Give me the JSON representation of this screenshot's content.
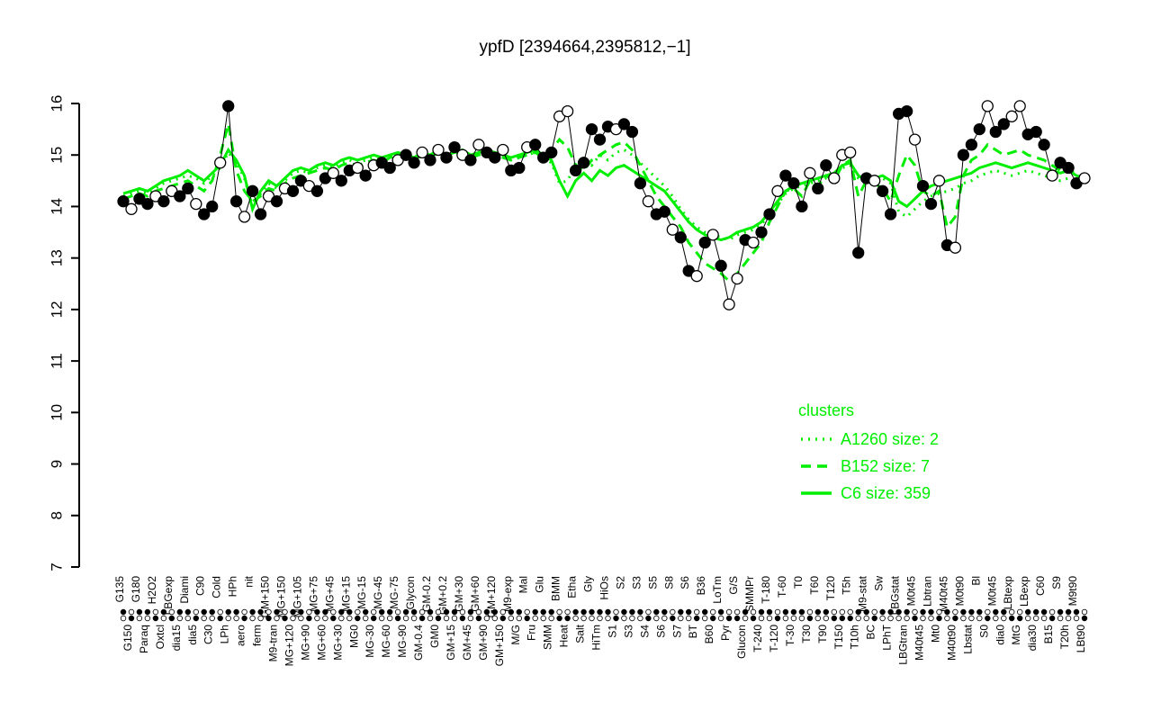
{
  "title": "ypfD [2394664,2395812,−1]",
  "colors": {
    "cluster_green": "#00ee00",
    "point_black": "#000000",
    "background": "#ffffff"
  },
  "legend": {
    "title": "clusters",
    "items": [
      {
        "label": "A1260 size: 2",
        "style": "dotted"
      },
      {
        "label": "B152 size: 7",
        "style": "dashed"
      },
      {
        "label": "C6 size: 359",
        "style": "solid"
      }
    ]
  },
  "chart_data": {
    "type": "line",
    "title": "ypfD [2394664,2395812,−1]",
    "ylim": [
      7,
      16
    ],
    "yticks": [
      7,
      8,
      9,
      10,
      11,
      12,
      13,
      14,
      15,
      16
    ],
    "grid": false,
    "legend_position": "right-middle",
    "categories": [
      "G135",
      "G150",
      "G180",
      "Paraq",
      "H2O2",
      "Oxtcl",
      "LBGexp",
      "dia15",
      "Diami",
      "dia5",
      "C90",
      "C30",
      "Cold",
      "LPh",
      "HPh",
      "aero",
      "nit",
      "ferm",
      "GM+150",
      "M9-tran",
      "MG+150",
      "MG+120",
      "MG+105",
      "MG+90",
      "MG+75",
      "MG+60",
      "MG+45",
      "MG+30",
      "MG+15",
      "MG0",
      "MG-15",
      "MG-30",
      "MG-45",
      "MG-60",
      "MG-75",
      "MG-90",
      "Glycon",
      "GM-0.4",
      "GM-0.2",
      "GM0",
      "GM+0.2",
      "GM+15",
      "GM+30",
      "GM+45",
      "GM+60",
      "GM+90",
      "GM+120",
      "GM+150",
      "M9-exp",
      "M/G",
      "Mal",
      "Fru",
      "Glu",
      "SMM",
      "BMM",
      "Heat",
      "Etha",
      "Salt",
      "Gly",
      "HiTm",
      "HiOs",
      "S1",
      "S2",
      "S3",
      "S3",
      "S4",
      "S5",
      "S6",
      "S8",
      "S7",
      "S6",
      "BT",
      "B36",
      "B60",
      "LoTm",
      "Pyr",
      "G/S",
      "Glucon",
      "SMMPr",
      "T-240",
      "T-180",
      "T-120",
      "T-60",
      "T-30",
      "T0",
      "T30",
      "T60",
      "T90",
      "T120",
      "T150",
      "T5h",
      "T10h",
      "M9-stat",
      "BC",
      "Sw",
      "LPhT",
      "LBGstat",
      "LBGtran",
      "M0t45",
      "M40t45",
      "Lbtran",
      "Mt0",
      "M40t45",
      "M40t90",
      "M0t90",
      "Lbstat",
      "Bl",
      "S0",
      "M0t45",
      "dia0",
      "LBtexp",
      "MtG",
      "LBexp",
      "dia30",
      "C60",
      "B15",
      "S9",
      "T20h",
      "M9t90",
      "LBt90"
    ],
    "gene_points": {
      "values": [
        14.1,
        13.95,
        14.15,
        14.05,
        14.2,
        14.1,
        14.3,
        14.2,
        14.35,
        14.05,
        13.85,
        14.0,
        14.85,
        15.95,
        14.1,
        13.8,
        14.3,
        13.85,
        14.2,
        14.1,
        14.35,
        14.3,
        14.5,
        14.4,
        14.3,
        14.55,
        14.65,
        14.5,
        14.7,
        14.75,
        14.6,
        14.8,
        14.85,
        14.75,
        14.9,
        15.0,
        14.85,
        15.05,
        14.9,
        15.1,
        14.95,
        15.15,
        15.0,
        14.9,
        15.2,
        15.05,
        14.95,
        15.1,
        14.7,
        14.75,
        15.15,
        15.2,
        14.95,
        15.05,
        15.75,
        15.85,
        14.7,
        14.85,
        15.5,
        15.3,
        15.55,
        15.5,
        15.6,
        15.45,
        14.45,
        14.1,
        13.85,
        13.9,
        13.55,
        13.4,
        12.75,
        12.65,
        13.3,
        13.45,
        12.85,
        12.1,
        12.6,
        13.35,
        13.3,
        13.5,
        13.85,
        14.3,
        14.6,
        14.45,
        14.0,
        14.65,
        14.35,
        14.8,
        14.55,
        15.0,
        15.05,
        13.1,
        14.55,
        14.5,
        14.3,
        13.85,
        15.8,
        15.85,
        15.3,
        14.4,
        14.05,
        14.5,
        13.25,
        13.2,
        15.0,
        15.2,
        15.5,
        15.95,
        15.45,
        15.6,
        15.75,
        15.95,
        15.4,
        15.45,
        15.2,
        14.6,
        14.85,
        14.75,
        14.45,
        14.55
      ],
      "filled": [
        1,
        0,
        1,
        1,
        0,
        1,
        0,
        1,
        1,
        0,
        1,
        1,
        0,
        1,
        1,
        0,
        1,
        1,
        0,
        1,
        0,
        1,
        1,
        0,
        1,
        1,
        0,
        1,
        1,
        0,
        1,
        0,
        1,
        1,
        0,
        1,
        1,
        0,
        1,
        0,
        1,
        1,
        0,
        1,
        0,
        1,
        1,
        0,
        1,
        1,
        0,
        1,
        1,
        1,
        0,
        0,
        1,
        1,
        1,
        1,
        1,
        0,
        1,
        1,
        1,
        0,
        1,
        1,
        0,
        1,
        1,
        0,
        1,
        0,
        1,
        0,
        0,
        1,
        0,
        1,
        1,
        0,
        1,
        1,
        1,
        0,
        1,
        1,
        0,
        0,
        0,
        1,
        1,
        0,
        1,
        1,
        1,
        1,
        0,
        1,
        1,
        0,
        1,
        0,
        1,
        1,
        1,
        0,
        1,
        1,
        0,
        0,
        1,
        1,
        1,
        0,
        1,
        1,
        1,
        0
      ]
    },
    "series": [
      {
        "name": "A1260 size: 2",
        "style": "dotted",
        "values": [
          14.2,
          14.25,
          14.3,
          14.25,
          14.35,
          14.45,
          14.5,
          14.55,
          14.6,
          14.55,
          14.45,
          14.6,
          14.75,
          15.05,
          14.85,
          14.55,
          14.0,
          14.25,
          14.45,
          14.35,
          14.5,
          14.65,
          14.7,
          14.65,
          14.75,
          14.8,
          14.75,
          14.85,
          14.9,
          14.85,
          14.9,
          14.95,
          14.9,
          14.95,
          15.0,
          14.95,
          14.9,
          15.0,
          14.95,
          15.05,
          14.95,
          15.0,
          15.05,
          14.95,
          15.0,
          15.05,
          15.0,
          14.95,
          14.9,
          14.95,
          15.0,
          15.05,
          14.95,
          14.85,
          14.45,
          14.5,
          14.8,
          14.95,
          14.8,
          15.0,
          14.9,
          15.05,
          15.1,
          15.0,
          14.85,
          14.7,
          14.55,
          14.4,
          14.2,
          13.95,
          13.75,
          13.6,
          13.5,
          13.45,
          13.4,
          13.35,
          13.45,
          13.5,
          13.55,
          13.65,
          13.85,
          14.05,
          14.25,
          14.35,
          14.4,
          14.45,
          14.5,
          14.55,
          14.6,
          14.75,
          14.8,
          14.55,
          14.45,
          14.5,
          14.55,
          14.45,
          13.9,
          13.8,
          13.95,
          14.1,
          14.2,
          14.25,
          14.3,
          14.35,
          14.45,
          14.5,
          14.6,
          14.65,
          14.7,
          14.65,
          14.6,
          14.65,
          14.7,
          14.65,
          14.6,
          14.55,
          14.5,
          14.55,
          14.45,
          14.4
        ]
      },
      {
        "name": "B152 size: 7",
        "style": "dashed",
        "values": [
          14.15,
          14.2,
          14.25,
          14.2,
          14.3,
          14.35,
          14.4,
          14.45,
          14.5,
          14.4,
          14.3,
          14.5,
          15.0,
          15.6,
          14.7,
          14.3,
          14.1,
          14.2,
          14.35,
          14.3,
          14.45,
          14.55,
          14.6,
          14.65,
          14.7,
          14.75,
          14.7,
          14.8,
          14.85,
          14.8,
          14.85,
          14.9,
          14.85,
          14.95,
          15.0,
          14.95,
          14.9,
          15.0,
          14.95,
          15.05,
          14.95,
          15.0,
          15.05,
          14.95,
          15.0,
          15.05,
          15.0,
          14.95,
          14.9,
          14.95,
          15.0,
          15.05,
          14.95,
          15.1,
          15.3,
          15.15,
          14.8,
          14.7,
          14.9,
          15.0,
          15.1,
          15.2,
          15.25,
          15.1,
          14.8,
          14.5,
          14.2,
          14.0,
          13.8,
          13.6,
          13.3,
          13.1,
          12.9,
          12.8,
          12.7,
          12.55,
          12.7,
          12.9,
          13.1,
          13.3,
          13.7,
          14.0,
          14.3,
          14.35,
          14.2,
          14.5,
          14.4,
          14.6,
          14.5,
          14.8,
          14.9,
          14.2,
          14.5,
          14.45,
          14.35,
          14.1,
          14.6,
          15.0,
          14.8,
          14.3,
          14.2,
          14.3,
          13.6,
          13.8,
          14.6,
          14.9,
          15.0,
          15.2,
          15.1,
          15.0,
          15.05,
          15.1,
          15.0,
          14.95,
          14.9,
          14.8,
          14.7,
          14.75,
          14.6,
          14.5
        ]
      },
      {
        "name": "C6 size: 359",
        "style": "solid",
        "values": [
          14.25,
          14.3,
          14.35,
          14.3,
          14.4,
          14.5,
          14.55,
          14.6,
          14.7,
          14.6,
          14.5,
          14.65,
          14.8,
          15.1,
          14.9,
          14.6,
          13.95,
          14.3,
          14.5,
          14.4,
          14.55,
          14.7,
          14.75,
          14.7,
          14.8,
          14.85,
          14.8,
          14.9,
          14.95,
          14.9,
          14.95,
          15.0,
          14.95,
          15.0,
          15.05,
          15.0,
          14.95,
          15.05,
          15.0,
          15.1,
          15.0,
          15.05,
          15.1,
          15.0,
          15.05,
          15.1,
          15.05,
          15.0,
          14.95,
          15.0,
          15.05,
          15.1,
          15.0,
          14.9,
          14.5,
          14.2,
          14.5,
          14.65,
          14.5,
          14.7,
          14.6,
          14.75,
          14.8,
          14.7,
          14.6,
          14.5,
          14.4,
          14.3,
          14.1,
          13.9,
          13.7,
          13.55,
          13.45,
          13.4,
          13.35,
          13.4,
          13.5,
          13.55,
          13.6,
          13.7,
          13.9,
          14.1,
          14.3,
          14.4,
          14.45,
          14.5,
          14.55,
          14.6,
          14.65,
          14.8,
          14.85,
          14.6,
          14.5,
          14.55,
          14.6,
          14.5,
          14.1,
          14.0,
          14.15,
          14.3,
          14.4,
          14.45,
          14.5,
          14.55,
          14.6,
          14.65,
          14.75,
          14.8,
          14.85,
          14.8,
          14.75,
          14.8,
          14.85,
          14.8,
          14.75,
          14.7,
          14.65,
          14.7,
          14.6,
          14.55
        ]
      }
    ]
  }
}
